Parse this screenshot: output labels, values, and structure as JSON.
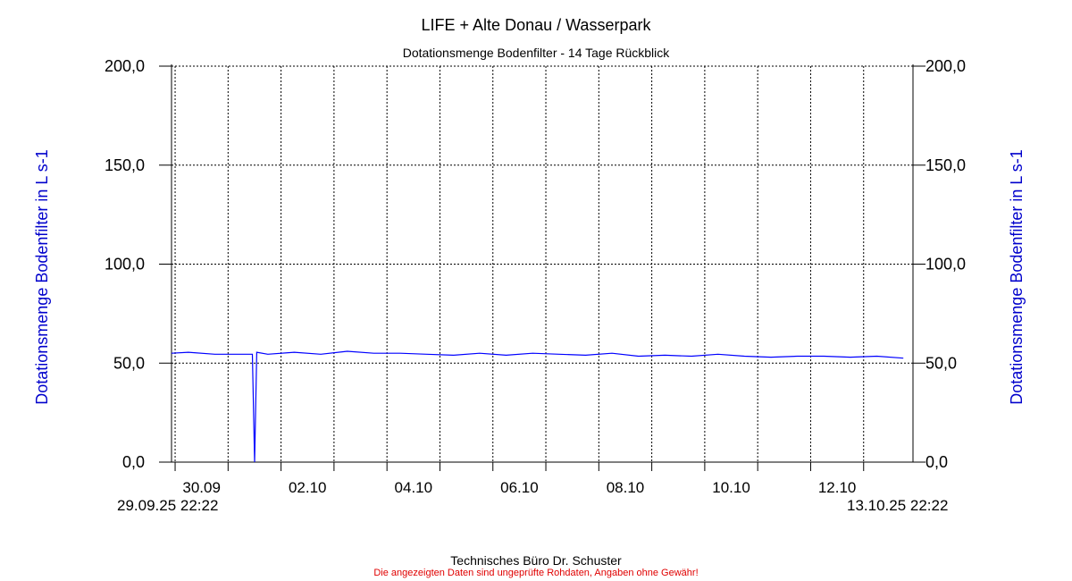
{
  "header": {
    "title": "LIFE + Alte Donau / Wasserpark",
    "subtitle": "Dotationsmenge Bodenfilter - 14 Tage Rückblick"
  },
  "footer": {
    "company": "Technisches Büro Dr. Schuster",
    "disclaimer": "Die angezeigten Daten sind ungeprüfte Rohdaten, Angaben ohne Gewähr!"
  },
  "range": {
    "start_label": "29.09.25 22:22",
    "end_label": "13.10.25 22:22"
  },
  "chart_data": {
    "type": "line",
    "title": "LIFE + Alte Donau / Wasserpark",
    "subtitle": "Dotationsmenge Bodenfilter - 14 Tage Rückblick",
    "ylabel": "Dotationsmenge Bodenfilter in L s-1",
    "ylabel_right": "Dotationsmenge Bodenfilter in L s-1",
    "ylim": [
      0,
      200
    ],
    "yticks": [
      "0,0",
      "50,0",
      "100,0",
      "150,0",
      "200,0"
    ],
    "xlim": [
      "2025-09-29 22:22",
      "2025-10-13 22:22"
    ],
    "xticks": [
      "30.09",
      "02.10",
      "04.10",
      "06.10",
      "08.10",
      "10.10",
      "12.10"
    ],
    "grid": true,
    "colors": {
      "series": "#0000ff",
      "axis_label": "#0000cc",
      "disclaimer": "#e00000"
    },
    "series": [
      {
        "x": [
          "2025-09-29 22:22",
          "2025-09-30 06:00",
          "2025-09-30 18:00",
          "2025-10-01 06:00",
          "2025-10-01 11:00",
          "2025-10-01 12:00",
          "2025-10-01 13:00",
          "2025-10-01 18:00",
          "2025-10-02 06:00",
          "2025-10-02 18:00",
          "2025-10-03 06:00",
          "2025-10-03 18:00",
          "2025-10-04 06:00",
          "2025-10-04 18:00",
          "2025-10-05 06:00",
          "2025-10-05 18:00",
          "2025-10-06 06:00",
          "2025-10-06 18:00",
          "2025-10-07 06:00",
          "2025-10-07 18:00",
          "2025-10-08 06:00",
          "2025-10-08 18:00",
          "2025-10-09 06:00",
          "2025-10-09 18:00",
          "2025-10-10 06:00",
          "2025-10-10 18:00",
          "2025-10-11 06:00",
          "2025-10-11 18:00",
          "2025-10-12 06:00",
          "2025-10-12 18:00",
          "2025-10-13 06:00",
          "2025-10-13 18:00"
        ],
        "values": [
          55,
          55.5,
          54.5,
          54.5,
          54.5,
          0,
          55.5,
          54.5,
          55.5,
          54.5,
          56,
          55,
          55,
          54.5,
          54,
          55,
          54,
          55,
          54.5,
          54,
          55,
          53.5,
          54,
          53.5,
          54.5,
          53.5,
          53,
          53.5,
          53.5,
          53,
          53.5,
          52.5
        ]
      }
    ]
  }
}
